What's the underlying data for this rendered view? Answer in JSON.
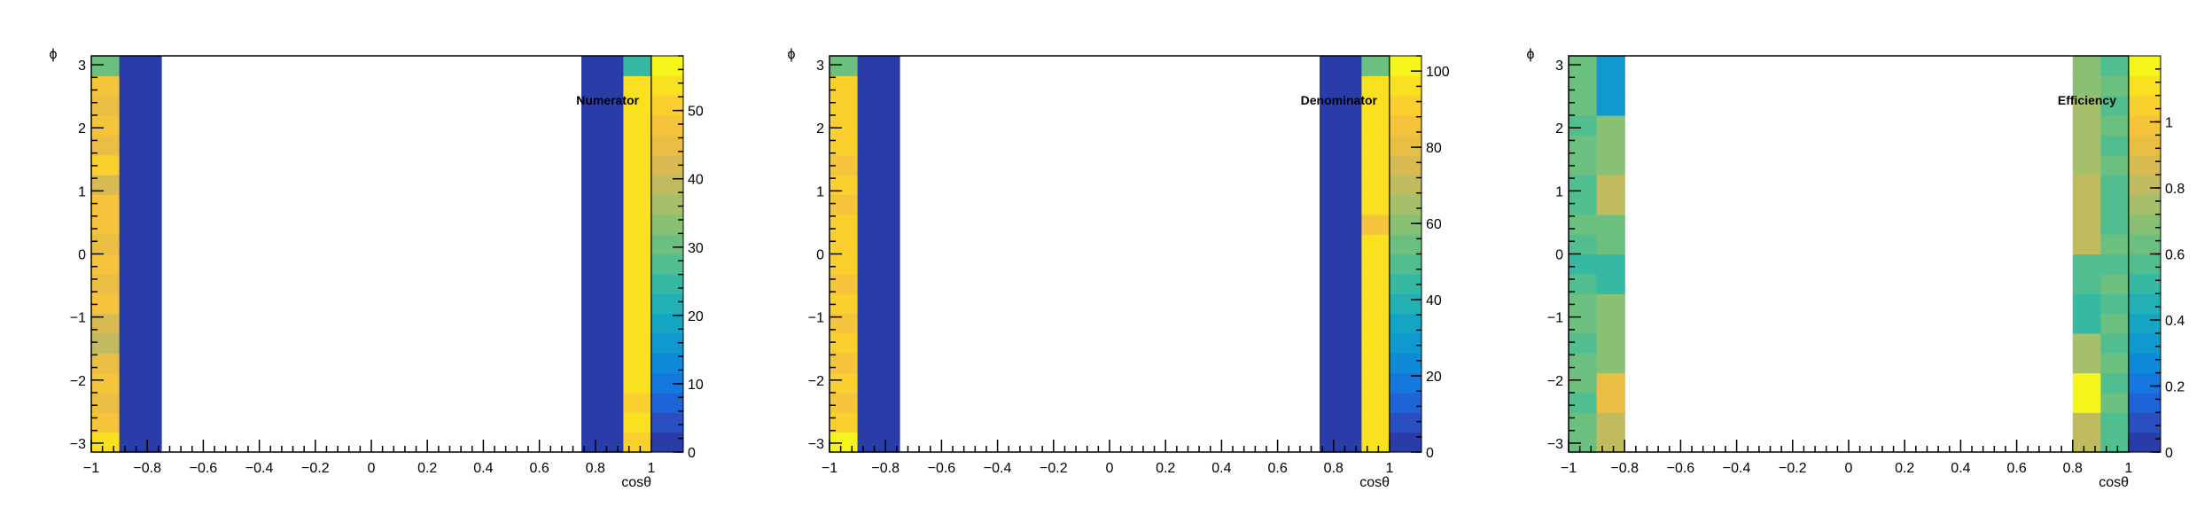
{
  "palette": [
    "#2a3ca8",
    "#2a4fc0",
    "#1e63d8",
    "#1478df",
    "#0f8ad8",
    "#0f99cf",
    "#13a6c4",
    "#22b0b4",
    "#35b9a2",
    "#50be8f",
    "#6cc07f",
    "#89c174",
    "#a6bf6a",
    "#c1bb5f",
    "#d7ba52",
    "#e9be42",
    "#f6c43a",
    "#fbd02e",
    "#f9e120",
    "#f5f41b"
  ],
  "panels": [
    {
      "name": "numerator",
      "label": "Numerator",
      "chart_data": {
        "type": "heatmap",
        "title": "Numerator",
        "xlabel": "cosθ",
        "ylabel": "ϕ",
        "xlim": [
          -1,
          1
        ],
        "ylim": [
          -3.14159,
          3.14159
        ],
        "x_ticks": [
          "−1",
          "−0.8",
          "−0.6",
          "−0.4",
          "−0.2",
          "0",
          "0.2",
          "0.4",
          "0.6",
          "0.8",
          "1"
        ],
        "y_ticks": [
          "−3",
          "−2",
          "−1",
          "0",
          "1",
          "2",
          "3"
        ],
        "z_min": 0,
        "z_max": 58,
        "colorbar_ticks": [
          "0",
          "10",
          "20",
          "30",
          "40",
          "50"
        ],
        "colorbar_tick_values": [
          0,
          10,
          20,
          30,
          40,
          50
        ],
        "columns": [
          {
            "x_from": -1.0,
            "x_to": -0.9,
            "values": [
              55,
              48,
              46,
              48,
              46,
              40,
              41,
              47,
              46,
              49,
              46,
              47,
              48,
              42,
              50,
              45,
              48,
              46,
              47,
              30
            ]
          },
          {
            "x_from": -0.9,
            "x_to": -0.75,
            "values": [
              0,
              0,
              0,
              0,
              0,
              0,
              0,
              0,
              0,
              0,
              0,
              0,
              0,
              0,
              0,
              0,
              0,
              0,
              0,
              0
            ]
          },
          {
            "x_from": 0.75,
            "x_to": 0.9,
            "values": [
              0,
              0,
              0,
              0,
              0,
              0,
              0,
              0,
              0,
              0,
              0,
              0,
              0,
              0,
              0,
              0,
              0,
              0,
              0,
              0
            ]
          },
          {
            "x_from": 0.9,
            "x_to": 1.0,
            "values": [
              52,
              53,
              52,
              53,
              53,
              53,
              54,
              53,
              54,
              53,
              54,
              53,
              54,
              53,
              54,
              53,
              54,
              53,
              54,
              25
            ]
          }
        ]
      }
    },
    {
      "name": "denominator",
      "label": "Denominator",
      "chart_data": {
        "type": "heatmap",
        "title": "Denominator",
        "xlabel": "cosθ",
        "ylabel": "ϕ",
        "xlim": [
          -1,
          1
        ],
        "ylim": [
          -3.14159,
          3.14159
        ],
        "x_ticks": [
          "−1",
          "−0.8",
          "−0.6",
          "−0.4",
          "−0.2",
          "0",
          "0.2",
          "0.4",
          "0.6",
          "0.8",
          "1"
        ],
        "y_ticks": [
          "−3",
          "−2",
          "−1",
          "0",
          "1",
          "2",
          "3"
        ],
        "z_min": 0,
        "z_max": 104,
        "colorbar_ticks": [
          "0",
          "20",
          "40",
          "60",
          "80",
          "100"
        ],
        "colorbar_tick_values": [
          0,
          20,
          40,
          60,
          80,
          100
        ],
        "columns": [
          {
            "x_from": -1.0,
            "x_to": -0.9,
            "values": [
              100,
              90,
              85,
              90,
              88,
              90,
              88,
              90,
              88,
              90,
              89,
              90,
              88,
              90,
              88,
              90,
              89,
              90,
              90,
              55
            ]
          },
          {
            "x_from": -0.9,
            "x_to": -0.75,
            "values": [
              0,
              0,
              0,
              0,
              0,
              0,
              0,
              0,
              0,
              0,
              0,
              0,
              0,
              0,
              0,
              0,
              0,
              0,
              0,
              0
            ]
          },
          {
            "x_from": 0.75,
            "x_to": 0.9,
            "values": [
              0,
              0,
              0,
              0,
              0,
              0,
              0,
              0,
              0,
              0,
              0,
              0,
              0,
              0,
              0,
              0,
              0,
              0,
              0,
              0
            ]
          },
          {
            "x_from": 0.9,
            "x_to": 1.0,
            "values": [
              96,
              97,
              98,
              96,
              97,
              96,
              97,
              95,
              98,
              96,
              95,
              88,
              96,
              98,
              97,
              98,
              97,
              98,
              97,
              55
            ]
          }
        ]
      }
    },
    {
      "name": "efficiency",
      "label": "Efficiency",
      "chart_data": {
        "type": "heatmap",
        "title": "Efficiency",
        "xlabel": "cosθ",
        "ylabel": "ϕ",
        "xlim": [
          -1,
          1
        ],
        "ylim": [
          -3.14159,
          3.14159
        ],
        "x_ticks": [
          "−1",
          "−0.8",
          "−0.6",
          "−0.4",
          "−0.2",
          "0",
          "0.2",
          "0.4",
          "0.6",
          "0.8",
          "1"
        ],
        "y_ticks": [
          "−3",
          "−2",
          "−1",
          "0",
          "1",
          "2",
          "3"
        ],
        "z_min": 0,
        "z_max": 1.2,
        "colorbar_ticks": [
          "0",
          "0.2",
          "0.4",
          "0.6",
          "0.8",
          "1"
        ],
        "colorbar_tick_values": [
          0,
          0.2,
          0.4,
          0.6,
          0.8,
          1.0
        ],
        "columns": [
          {
            "x_from": -1.0,
            "x_to": -0.9,
            "values": [
              0.6,
              0.62,
              0.55,
              0.6,
              0.62,
              0.58,
              0.6,
              0.6,
              0.55,
              0.5,
              0.55,
              0.6,
              0.55,
              0.58,
              0.6,
              0.62,
              0.58,
              0.6,
              0.6,
              0.6
            ]
          },
          {
            "x_from": -0.9,
            "x_to": -0.8,
            "values": [
              0.8,
              0.8,
              0.92,
              0.92,
              0.7,
              0.7,
              0.7,
              0.7,
              0.52,
              0.52,
              0.6,
              0.6,
              0.8,
              0.8,
              0.7,
              0.7,
              0.7,
              0.3,
              0.3,
              0.35
            ]
          },
          {
            "x_from": 0.8,
            "x_to": 0.9,
            "values": [
              0.83,
              0.83,
              1.2,
              1.2,
              0.72,
              0.72,
              0.52,
              0.52,
              0.55,
              0.55,
              0.82,
              0.82,
              0.82,
              0.82,
              0.75,
              0.75,
              0.75,
              0.75,
              0.7,
              0.7
            ]
          },
          {
            "x_from": 0.9,
            "x_to": 1.0,
            "values": [
              0.55,
              0.55,
              0.6,
              0.58,
              0.6,
              0.58,
              0.6,
              0.55,
              0.6,
              0.58,
              0.6,
              0.58,
              0.55,
              0.58,
              0.6,
              0.58,
              0.6,
              0.58,
              0.6,
              0.55
            ]
          }
        ]
      }
    }
  ]
}
